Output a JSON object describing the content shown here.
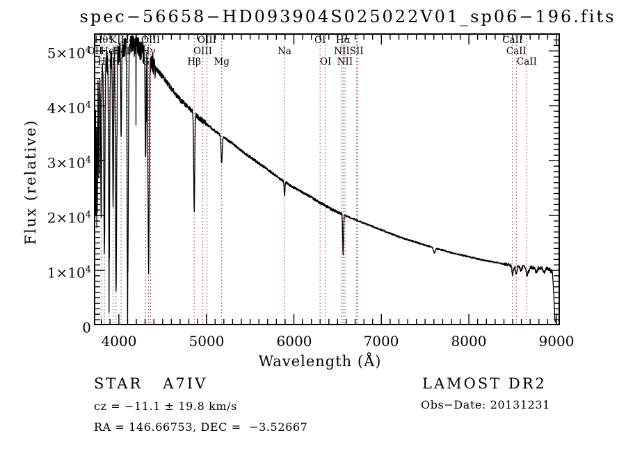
{
  "title": "spec−56658−HD093904S025022V01_sp06−196.fits",
  "axes": {
    "x_label": "Wavelength (Å)",
    "y_label": "Flux (relative)",
    "x_ticks": [
      "4000",
      "5000",
      "6000",
      "7000",
      "8000",
      "9000"
    ],
    "y_ticks": [
      {
        "mant": "0",
        "exp": ""
      },
      {
        "mant": "1×10",
        "exp": "4"
      },
      {
        "mant": "2×10",
        "exp": "4"
      },
      {
        "mant": "3×10",
        "exp": "4"
      },
      {
        "mant": "4×10",
        "exp": "4"
      },
      {
        "mant": "5×10",
        "exp": "4"
      }
    ]
  },
  "annotations": {
    "class_line": "STAR   A7IV",
    "cz_line": "cz = −11.1 ± 19.8 km/s",
    "ra_line": "RA = 146.66753, DEC =  −3.52667",
    "survey": "LAMOST DR2",
    "obs_date": "Obs−Date: 20131231"
  },
  "colors": {
    "background": "#ffffff",
    "axis": "#000000",
    "spectrum": "#000000",
    "line_marker": "#8f4e46"
  },
  "chart_data": {
    "type": "line",
    "title": "spec−56658−HD093904S025022V01_sp06−196.fits",
    "xlabel": "Wavelength (Å)",
    "ylabel": "Flux (relative)",
    "xlim": [
      3715,
      9040
    ],
    "ylim": [
      0,
      53200
    ],
    "x_major_ticks": [
      4000,
      5000,
      6000,
      7000,
      8000,
      9000
    ],
    "y_major_ticks": [
      0,
      10000,
      20000,
      30000,
      40000,
      50000
    ],
    "x_minor_step": 100,
    "y_minor_step": 1000,
    "grid": false,
    "legend": "none",
    "flux_scale": 10000,
    "data_range": [
      3718,
      8988
    ],
    "continuum_points": [
      [
        3715,
        2.2
      ],
      [
        3721,
        4.1
      ],
      [
        3727,
        1.3
      ],
      [
        3733,
        4.25
      ],
      [
        3739,
        2.0
      ],
      [
        3746,
        4.35
      ],
      [
        3753,
        3.2
      ],
      [
        3761,
        4.45
      ],
      [
        3770,
        4.5
      ],
      [
        3785,
        4.58
      ],
      [
        3800,
        4.65
      ],
      [
        3820,
        4.7
      ],
      [
        3845,
        4.76
      ],
      [
        3870,
        4.8
      ],
      [
        3900,
        4.86
      ],
      [
        3930,
        4.9
      ],
      [
        3960,
        4.94
      ],
      [
        3995,
        4.98
      ],
      [
        4030,
        5.03
      ],
      [
        4070,
        5.09
      ],
      [
        4110,
        5.14
      ],
      [
        4150,
        5.17
      ],
      [
        4190,
        5.12
      ],
      [
        4230,
        5.06
      ],
      [
        4270,
        4.99
      ],
      [
        4310,
        4.92
      ],
      [
        4360,
        4.8
      ],
      [
        4420,
        4.68
      ],
      [
        4490,
        4.55
      ],
      [
        4560,
        4.4
      ],
      [
        4630,
        4.25
      ],
      [
        4700,
        4.11
      ],
      [
        4770,
        4.0
      ],
      [
        4840,
        3.9
      ],
      [
        4910,
        3.79
      ],
      [
        4980,
        3.7
      ],
      [
        5060,
        3.59
      ],
      [
        5140,
        3.49
      ],
      [
        5220,
        3.4
      ],
      [
        5300,
        3.31
      ],
      [
        5380,
        3.21
      ],
      [
        5460,
        3.11
      ],
      [
        5540,
        3.02
      ],
      [
        5620,
        2.93
      ],
      [
        5700,
        2.84
      ],
      [
        5780,
        2.74
      ],
      [
        5860,
        2.65
      ],
      [
        5940,
        2.57
      ],
      [
        6020,
        2.49
      ],
      [
        6100,
        2.42
      ],
      [
        6180,
        2.35
      ],
      [
        6260,
        2.27
      ],
      [
        6340,
        2.2
      ],
      [
        6420,
        2.12
      ],
      [
        6500,
        2.06
      ],
      [
        6580,
        2.0
      ],
      [
        6660,
        1.95
      ],
      [
        6740,
        1.9
      ],
      [
        6820,
        1.85
      ],
      [
        6900,
        1.8
      ],
      [
        6980,
        1.75
      ],
      [
        7060,
        1.7
      ],
      [
        7140,
        1.65
      ],
      [
        7220,
        1.6
      ],
      [
        7300,
        1.56
      ],
      [
        7380,
        1.52
      ],
      [
        7460,
        1.48
      ],
      [
        7540,
        1.44
      ],
      [
        7620,
        1.4
      ],
      [
        7700,
        1.37
      ],
      [
        7780,
        1.33
      ],
      [
        7860,
        1.3
      ],
      [
        7940,
        1.27
      ],
      [
        8020,
        1.24
      ],
      [
        8100,
        1.21
      ],
      [
        8180,
        1.18
      ],
      [
        8260,
        1.16
      ],
      [
        8340,
        1.13
      ],
      [
        8420,
        1.11
      ],
      [
        8500,
        1.09
      ],
      [
        8580,
        1.08
      ],
      [
        8660,
        1.06
      ],
      [
        8740,
        1.05
      ],
      [
        8820,
        1.04
      ],
      [
        8900,
        1.03
      ],
      [
        8940,
        1.02
      ],
      [
        8955,
        0.95
      ],
      [
        8970,
        0.55
      ],
      [
        8980,
        0.2
      ],
      [
        8988,
        0.04
      ]
    ],
    "absorption_features": [
      {
        "wavelength": 3750,
        "depth": 1.6,
        "sigma": 4
      },
      {
        "wavelength": 3771,
        "depth": 1.9,
        "sigma": 4
      },
      {
        "wavelength": 3798,
        "depth": 2.7,
        "sigma": 5
      },
      {
        "wavelength": 3835,
        "depth": 3.3,
        "sigma": 6
      },
      {
        "wavelength": 3889,
        "depth": 3.7,
        "sigma": 6
      },
      {
        "wavelength": 3934,
        "depth": 2.9,
        "sigma": 5
      },
      {
        "wavelength": 3968,
        "depth": 4.2,
        "sigma": 7
      },
      {
        "wavelength": 4026,
        "depth": 1.7,
        "sigma": 4
      },
      {
        "wavelength": 4102,
        "depth": 4.3,
        "sigma": 7
      },
      {
        "wavelength": 4305,
        "depth": 2.0,
        "sigma": 5
      },
      {
        "wavelength": 4340,
        "depth": 3.9,
        "sigma": 7
      },
      {
        "wavelength": 4861,
        "depth": 1.8,
        "sigma": 6
      },
      {
        "wavelength": 5175,
        "depth": 0.5,
        "sigma": 7
      },
      {
        "wavelength": 5893,
        "depth": 0.25,
        "sigma": 5
      },
      {
        "wavelength": 6563,
        "depth": 0.76,
        "sigma": 5
      },
      {
        "wavelength": 7605,
        "depth": 0.09,
        "sigma": 10
      },
      {
        "wavelength": 8498,
        "depth": 0.12,
        "sigma": 7
      },
      {
        "wavelength": 8542,
        "depth": 0.15,
        "sigma": 8
      },
      {
        "wavelength": 8662,
        "depth": 0.14,
        "sigma": 8
      }
    ],
    "spectral_lines": [
      {
        "label": "OII",
        "wavelength": 3727,
        "row": 2
      },
      {
        "label": "Hθ",
        "wavelength": 3798,
        "row": 1
      },
      {
        "label": "Hη",
        "wavelength": 3835,
        "row": 3
      },
      {
        "label": "HeI",
        "wavelength": 3889,
        "row": 2
      },
      {
        "label": "K",
        "wavelength": 3934,
        "row": 1
      },
      {
        "label": "H",
        "wavelength": 3968,
        "row": 3
      },
      {
        "label": "HeI",
        "wavelength": 4026,
        "row": 2
      },
      {
        "label": "Hδ",
        "wavelength": 4102,
        "row": 1
      },
      {
        "label": "G",
        "wavelength": 4305,
        "row": 3
      },
      {
        "label": "Hγ",
        "wavelength": 4340,
        "row": 2
      },
      {
        "label": "OIII",
        "wavelength": 4363,
        "row": 1
      },
      {
        "label": "Hβ",
        "wavelength": 4861,
        "row": 3
      },
      {
        "label": "OIII",
        "wavelength": 4959,
        "row": 2
      },
      {
        "label": "OIII",
        "wavelength": 5007,
        "row": 1
      },
      {
        "label": "Mg",
        "wavelength": 5175,
        "row": 3
      },
      {
        "label": "Na",
        "wavelength": 5893,
        "row": 2
      },
      {
        "label": "OI",
        "wavelength": 6300,
        "row": 1
      },
      {
        "label": "OI",
        "wavelength": 6363,
        "row": 3
      },
      {
        "label": "NII",
        "wavelength": 6548,
        "row": 2
      },
      {
        "label": "Hα",
        "wavelength": 6563,
        "row": 1
      },
      {
        "label": "NII",
        "wavelength": 6584,
        "row": 3
      },
      {
        "label": "SII",
        "wavelength": 6717,
        "row": 2
      },
      {
        "label": "",
        "wavelength": 6731,
        "row": 2
      },
      {
        "label": "CaII",
        "wavelength": 8498,
        "row": 1
      },
      {
        "label": "CaII",
        "wavelength": 8542,
        "row": 2
      },
      {
        "label": "CaII",
        "wavelength": 8662,
        "row": 3
      }
    ]
  }
}
